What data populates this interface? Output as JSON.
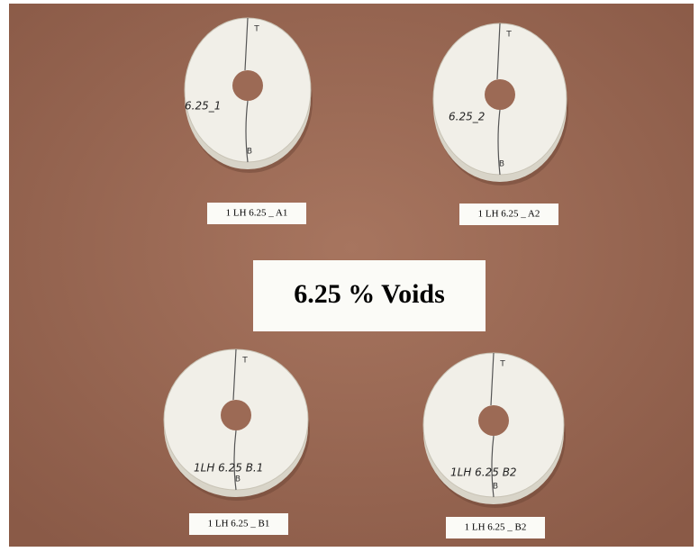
{
  "title": "6.25 % Voids",
  "samples": [
    {
      "label": "1 LH 6.25 _ A1",
      "marking": "6.25_1",
      "top": "T",
      "bottom": "B"
    },
    {
      "label": "1 LH 6.25 _ A2",
      "marking": "6.25_2",
      "top": "T",
      "bottom": "B"
    },
    {
      "label": "1 LH 6.25 _ B1",
      "marking": "1LH 6.25 B.1",
      "top": "T",
      "bottom": "B"
    },
    {
      "label": "1 LH 6.25 _ B2",
      "marking": "1LH 6.25 B2",
      "top": "T",
      "bottom": "B"
    }
  ]
}
